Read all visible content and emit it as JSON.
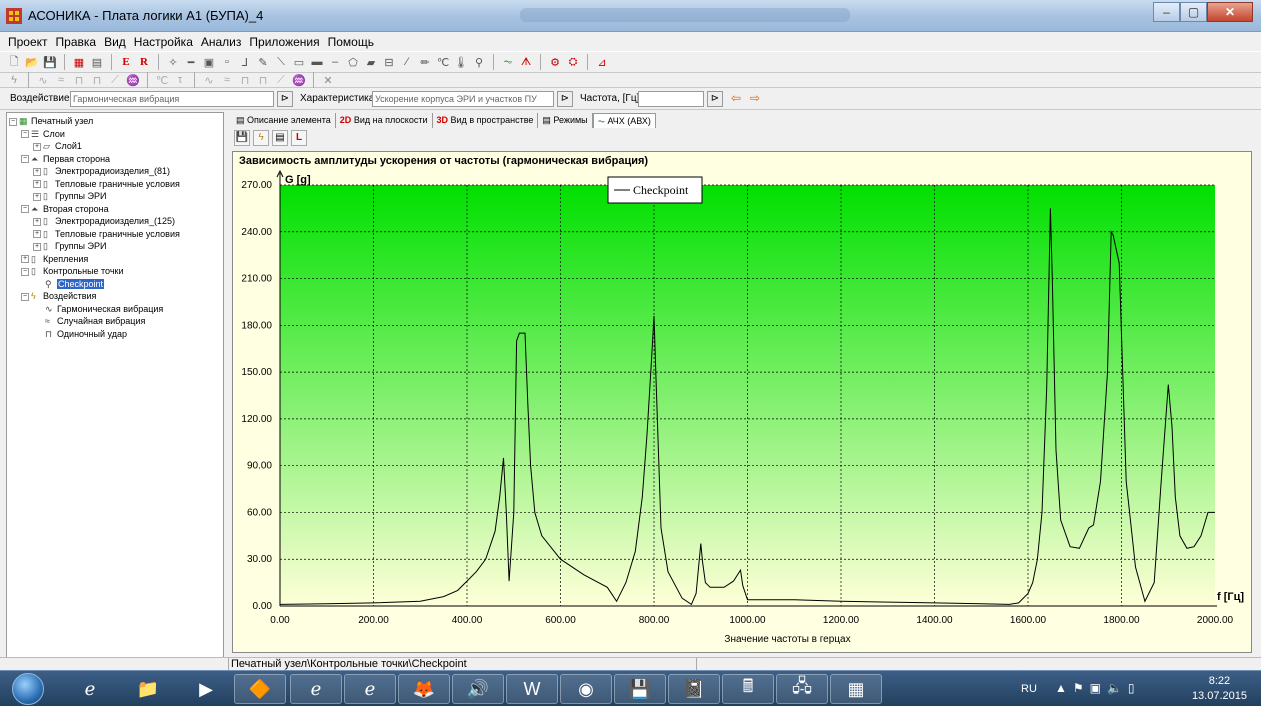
{
  "window": {
    "title": "АСОНИКА - Плата логики А1 (БУПА)_4",
    "minimize": "–",
    "maximize": "▢",
    "close": "✕"
  },
  "menu": [
    "Проект",
    "Правка",
    "Вид",
    "Настройка",
    "Анализ",
    "Приложения",
    "Помощь"
  ],
  "params": {
    "impact_label": "Воздействие",
    "impact_value": "Гармоническая вибрация",
    "characteristic_label": "Характеристика",
    "characteristic_value": "Ускорение корпуса ЭРИ и участков ПУ",
    "frequency_label": "Частота, [Гц]",
    "frequency_value": ""
  },
  "tree": [
    {
      "level": 0,
      "expander": "−",
      "icon": "board-icon",
      "label": "Печатный узел"
    },
    {
      "level": 1,
      "expander": "−",
      "icon": "layers-icon",
      "label": "Слои"
    },
    {
      "level": 2,
      "expander": "+",
      "icon": "layer-icon",
      "label": "Слой1"
    },
    {
      "level": 1,
      "expander": "−",
      "icon": "side-icon",
      "label": "Первая сторона"
    },
    {
      "level": 2,
      "expander": "+",
      "icon": "folder-icon",
      "label": "Электрорадиоизделия_(81)"
    },
    {
      "level": 2,
      "expander": "+",
      "icon": "folder-icon",
      "label": "Тепловые граничные условия"
    },
    {
      "level": 2,
      "expander": "+",
      "icon": "folder-icon",
      "label": "Группы ЭРИ"
    },
    {
      "level": 1,
      "expander": "−",
      "icon": "side-icon",
      "label": "Вторая сторона"
    },
    {
      "level": 2,
      "expander": "+",
      "icon": "folder-icon",
      "label": "Электрорадиоизделия_(125)"
    },
    {
      "level": 2,
      "expander": "+",
      "icon": "folder-icon",
      "label": "Тепловые граничные условия"
    },
    {
      "level": 2,
      "expander": "+",
      "icon": "folder-icon",
      "label": "Группы ЭРИ"
    },
    {
      "level": 1,
      "expander": "+",
      "icon": "folder-icon",
      "label": "Крепления"
    },
    {
      "level": 1,
      "expander": "−",
      "icon": "folder-icon",
      "label": "Контрольные точки"
    },
    {
      "level": 2,
      "expander": "",
      "icon": "checkpoint-icon",
      "label": "Checkpoint",
      "selected": true
    },
    {
      "level": 1,
      "expander": "−",
      "icon": "lightning-icon",
      "label": "Воздействия"
    },
    {
      "level": 2,
      "expander": "",
      "icon": "harmonic-icon",
      "label": "Гармоническая вибрация"
    },
    {
      "level": 2,
      "expander": "",
      "icon": "random-icon",
      "label": "Случайная вибрация"
    },
    {
      "level": 2,
      "expander": "",
      "icon": "shock-icon",
      "label": "Одиночный удар"
    }
  ],
  "tabs": [
    {
      "prefix": "",
      "label": "Описание элемента"
    },
    {
      "prefix": "2D",
      "label": "Вид на плоскости"
    },
    {
      "prefix": "3D",
      "label": "Вид в пространстве"
    },
    {
      "prefix": "",
      "label": "Режимы"
    },
    {
      "prefix": "",
      "label": "АЧХ (АВХ)",
      "active": true
    }
  ],
  "chart_data": {
    "type": "line",
    "title": "Зависимость амплитуды ускорения от частоты (гармоническая вибрация)",
    "ylabel": "G [g]",
    "xlabel": "Значение частоты в герцах",
    "xlabel_axis": "f [Гц]",
    "xlim": [
      0,
      2000
    ],
    "ylim": [
      0,
      270
    ],
    "x_ticks": [
      "0.00",
      "200.00",
      "400.00",
      "600.00",
      "800.00",
      "1000.00",
      "1200.00",
      "1400.00",
      "1600.00",
      "1800.00",
      "2000.00"
    ],
    "y_ticks": [
      "0.00",
      "30.00",
      "60.00",
      "90.00",
      "120.00",
      "150.00",
      "180.00",
      "210.00",
      "240.00",
      "270.00"
    ],
    "grid": true,
    "legend_position": "top-center",
    "series": [
      {
        "name": "Checkpoint",
        "color": "#000000",
        "x": [
          0,
          100,
          200,
          300,
          350,
          380,
          400,
          420,
          440,
          460,
          470,
          478,
          484,
          490,
          500,
          506,
          512,
          518,
          524,
          530,
          536,
          545,
          560,
          600,
          650,
          700,
          720,
          740,
          760,
          775,
          785,
          795,
          800,
          805,
          815,
          830,
          860,
          880,
          890,
          900,
          904,
          910,
          920,
          950,
          970,
          985,
          990,
          1000,
          1100,
          1200,
          1300,
          1400,
          1500,
          1560,
          1580,
          1600,
          1610,
          1620,
          1630,
          1640,
          1648,
          1652,
          1660,
          1670,
          1690,
          1710,
          1730,
          1740,
          1755,
          1770,
          1778,
          1782,
          1795,
          1810,
          1830,
          1850,
          1870,
          1885,
          1900,
          1908,
          1915,
          1925,
          1940,
          1955,
          1970,
          1985,
          2000
        ],
        "y": [
          1,
          1.5,
          2,
          3,
          6,
          10,
          16,
          22,
          30,
          48,
          70,
          95,
          60,
          16,
          60,
          170,
          175,
          175,
          175,
          130,
          90,
          60,
          45,
          30,
          20,
          12,
          3,
          15,
          35,
          70,
          110,
          160,
          186,
          140,
          50,
          22,
          5,
          1,
          8,
          40,
          28,
          15,
          12,
          12,
          16,
          23,
          13,
          4,
          4,
          3,
          2.5,
          2,
          1.5,
          1,
          2,
          8,
          15,
          30,
          60,
          140,
          255,
          210,
          100,
          55,
          38,
          37,
          50,
          52,
          80,
          150,
          240,
          238,
          220,
          80,
          25,
          3,
          15,
          80,
          142,
          115,
          70,
          45,
          37,
          38,
          45,
          60,
          60
        ]
      }
    ]
  },
  "status": {
    "path": "Печатный узел\\Контрольные точки\\Checkpoint"
  },
  "tray": {
    "lang": "RU",
    "time": "8:22",
    "date": "13.07.2015"
  }
}
